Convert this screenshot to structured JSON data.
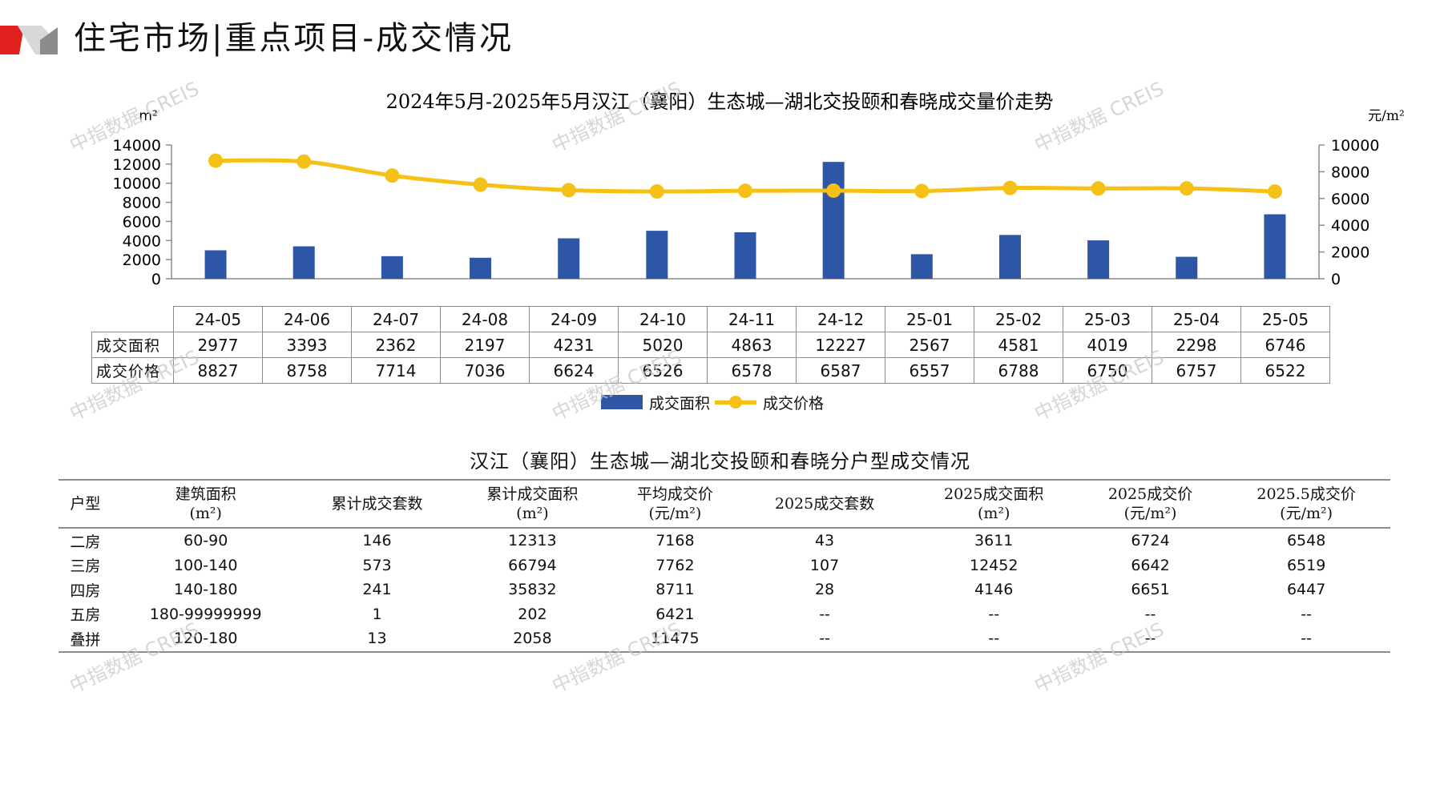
{
  "page_title": "住宅市场|重点项目-成交情况",
  "watermark": "中指数据 CREIS",
  "colors": {
    "bar": "#2e56a6",
    "line": "#f5c116",
    "accent_red": "#e0201c",
    "accent_gray": "#8c8c8c"
  },
  "chart_data": {
    "type": "bar+line",
    "title": "2024年5月-2025年5月汉江（襄阳）生态城—湖北交投颐和春晓成交量价走势",
    "left_unit": "m²",
    "right_unit": "元/m²",
    "categories": [
      "24-05",
      "24-06",
      "24-07",
      "24-08",
      "24-09",
      "24-10",
      "24-11",
      "24-12",
      "25-01",
      "25-02",
      "25-03",
      "25-04",
      "25-05"
    ],
    "series": [
      {
        "name": "成交面积",
        "type": "bar",
        "axis": "left",
        "values": [
          2977,
          3393,
          2362,
          2197,
          4231,
          5020,
          4863,
          12227,
          2567,
          4581,
          4019,
          2298,
          6746
        ]
      },
      {
        "name": "成交价格",
        "type": "line",
        "axis": "right",
        "values": [
          8827,
          8758,
          7714,
          7036,
          6624,
          6526,
          6578,
          6587,
          6557,
          6788,
          6750,
          6757,
          6522
        ]
      }
    ],
    "left_axis": {
      "ylim": [
        0,
        14000
      ],
      "ticks": [
        "14000",
        "12000",
        "10000",
        "8000",
        "6000",
        "4000",
        "2000",
        "0"
      ]
    },
    "right_axis": {
      "ylim": [
        0,
        10000
      ],
      "ticks": [
        "10000",
        "8000",
        "6000",
        "4000",
        "2000",
        "0"
      ]
    },
    "legend_position": "bottom",
    "grid": false
  },
  "table_rows": [
    {
      "label": "成交面积",
      "values": [
        "2977",
        "3393",
        "2362",
        "2197",
        "4231",
        "5020",
        "4863",
        "12227",
        "2567",
        "4581",
        "4019",
        "2298",
        "6746"
      ]
    },
    {
      "label": "成交价格",
      "values": [
        "8827",
        "8758",
        "7714",
        "7036",
        "6624",
        "6526",
        "6578",
        "6587",
        "6557",
        "6788",
        "6750",
        "6757",
        "6522"
      ]
    }
  ],
  "table2": {
    "title": "汉江（襄阳）生态城—湖北交投颐和春晓分户型成交情况",
    "headers": [
      [
        "户型"
      ],
      [
        "建筑面积",
        "(m²)"
      ],
      [
        "累计成交套数"
      ],
      [
        "累计成交面积",
        "(m²)"
      ],
      [
        "平均成交价",
        "(元/m²)"
      ],
      [
        "2025成交套数"
      ],
      [
        "2025成交面积",
        "(m²)"
      ],
      [
        "2025成交价",
        "(元/m²)"
      ],
      [
        "2025.5成交价",
        "(元/m²)"
      ]
    ],
    "rows": [
      [
        "二房",
        "60-90",
        "146",
        "12313",
        "7168",
        "43",
        "3611",
        "6724",
        "6548"
      ],
      [
        "三房",
        "100-140",
        "573",
        "66794",
        "7762",
        "107",
        "12452",
        "6642",
        "6519"
      ],
      [
        "四房",
        "140-180",
        "241",
        "35832",
        "8711",
        "28",
        "4146",
        "6651",
        "6447"
      ],
      [
        "五房",
        "180-99999999",
        "1",
        "202",
        "6421",
        "--",
        "--",
        "--",
        "--"
      ],
      [
        "叠拼",
        "120-180",
        "13",
        "2058",
        "11475",
        "--",
        "--",
        "--",
        "--"
      ]
    ]
  }
}
